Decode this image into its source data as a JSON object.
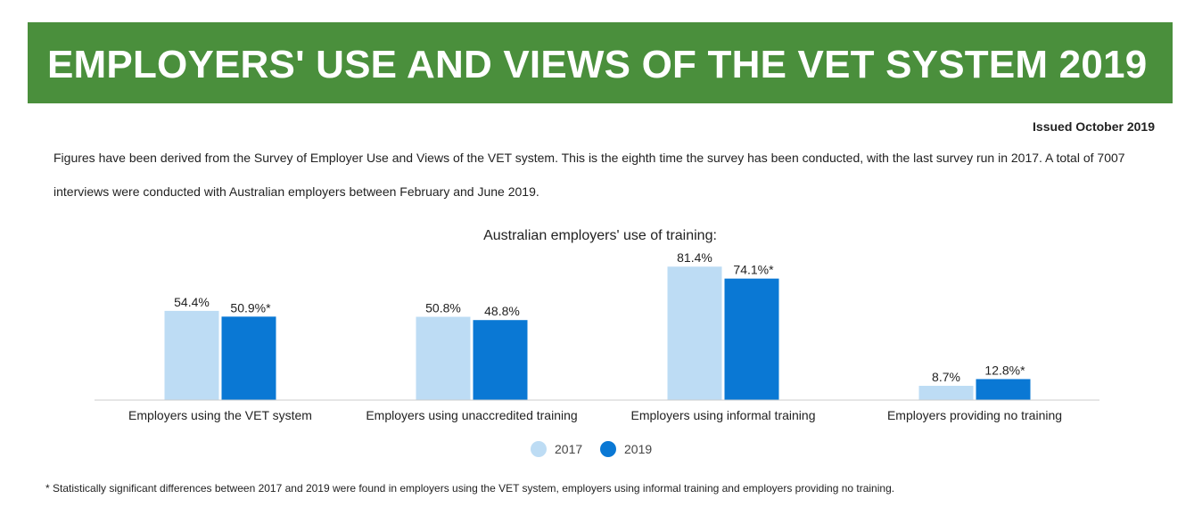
{
  "header": {
    "title": "EMPLOYERS' USE AND VIEWS OF THE VET SYSTEM 2019",
    "issued": "Issued October 2019"
  },
  "intro": "Figures have been derived from the Survey of Employer Use and Views of the VET system. This is the eighth time the survey has been conducted, with the last survey run in 2017. A total of 7007 interviews were conducted with Australian employers between February and June 2019.",
  "footnote": "*  Statistically significant differences between 2017 and 2019 were found in employers using the VET system, employers using informal training and employers providing no training.",
  "chart_data": {
    "type": "bar",
    "title": "Australian employers' use of training:",
    "xlabel": "",
    "ylabel": "",
    "ylim": [
      0,
      100
    ],
    "grid": false,
    "legend": "bottom-center",
    "categories": [
      "Employers using the VET system",
      "Employers using unaccredited training",
      "Employers using informal training",
      "Employers providing no training"
    ],
    "series": [
      {
        "name": "2017",
        "color": "#bddcf4",
        "values": [
          54.4,
          50.8,
          81.4,
          8.7
        ],
        "labels": [
          "54.4%",
          "50.8%",
          "81.4%",
          "8.7%"
        ]
      },
      {
        "name": "2019",
        "color": "#0a78d4",
        "values": [
          50.9,
          48.8,
          74.1,
          12.8
        ],
        "labels": [
          "50.9%*",
          "48.8%",
          "74.1%*",
          "12.8%*"
        ]
      }
    ]
  }
}
